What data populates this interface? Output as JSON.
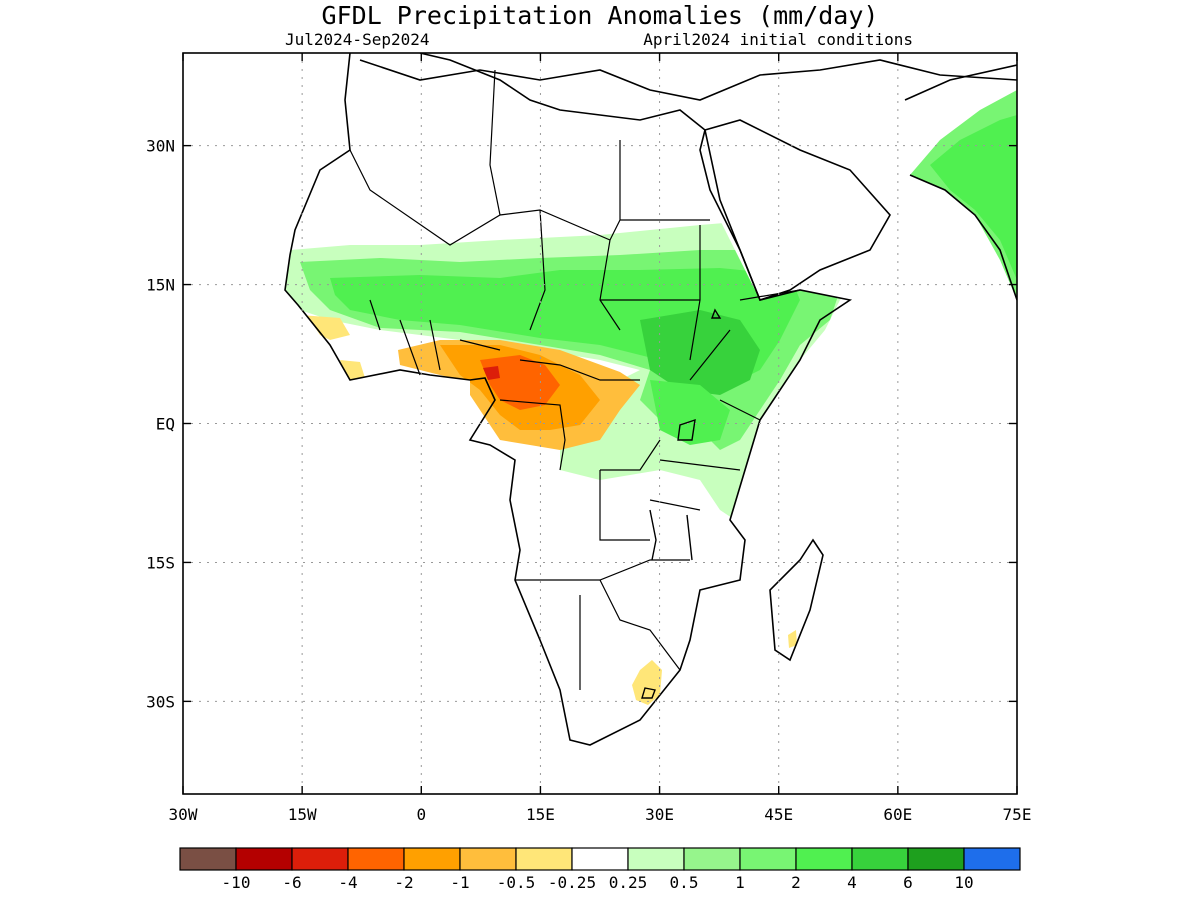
{
  "map": {
    "title": "GFDL Precipitation Anomalies (mm/day)",
    "season": "Jul2024-Sep2024",
    "init": "April2024 initial conditions",
    "lon_range": [
      -30,
      75
    ],
    "lat_range": [
      -40,
      40
    ],
    "lon_ticks": [
      {
        "value": -30,
        "label": "30W"
      },
      {
        "value": -15,
        "label": "15W"
      },
      {
        "value": 0,
        "label": "0"
      },
      {
        "value": 15,
        "label": "15E"
      },
      {
        "value": 30,
        "label": "30E"
      },
      {
        "value": 45,
        "label": "45E"
      },
      {
        "value": 60,
        "label": "60E"
      },
      {
        "value": 75,
        "label": "75E"
      }
    ],
    "lat_ticks": [
      {
        "value": 30,
        "label": "30N"
      },
      {
        "value": 15,
        "label": "15N"
      },
      {
        "value": 0,
        "label": "EQ"
      },
      {
        "value": -15,
        "label": "15S"
      },
      {
        "value": -30,
        "label": "30S"
      }
    ],
    "grid": "dotted",
    "colorbar": {
      "colors": [
        "#7a4f44",
        "#b40000",
        "#dc1e0a",
        "#ff6400",
        "#ffa000",
        "#ffbe3c",
        "#ffe678",
        "#ffffff",
        "#c8ffbe",
        "#96f58c",
        "#78f573",
        "#50f050",
        "#37d23c",
        "#1ea01e",
        "#1e6eeb"
      ],
      "labels": [
        "-10",
        "-6",
        "-4",
        "-2",
        "-1",
        "-0.5",
        "-0.25",
        "0.25",
        "0.5",
        "1",
        "2",
        "4",
        "6",
        "10"
      ]
    }
  }
}
